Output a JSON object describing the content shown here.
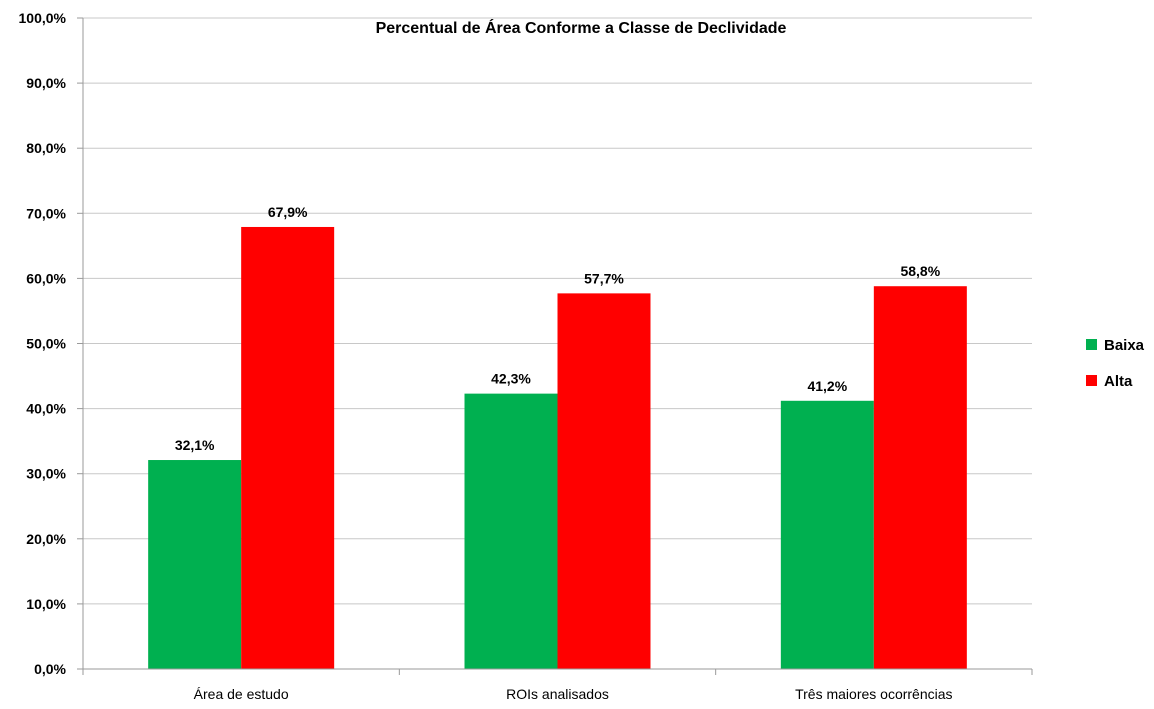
{
  "chart_data": {
    "type": "bar",
    "title": "Percentual de Área Conforme a Classe de Declividade",
    "categories": [
      "Área de estudo",
      "ROIs analisados",
      "Três maiores ocorrências"
    ],
    "series": [
      {
        "name": "Baixa",
        "color": "#00b050",
        "values": [
          32.1,
          42.3,
          41.2
        ],
        "labels": [
          "32,1%",
          "42,3%",
          "41,2%"
        ]
      },
      {
        "name": "Alta",
        "color": "#ff0000",
        "values": [
          67.9,
          57.7,
          58.8
        ],
        "labels": [
          "67,9%",
          "57,7%",
          "58,8%"
        ]
      }
    ],
    "y_ticks": [
      "0,0%",
      "10,0%",
      "20,0%",
      "30,0%",
      "40,0%",
      "50,0%",
      "60,0%",
      "70,0%",
      "80,0%",
      "90,0%",
      "100,0%"
    ],
    "ylim": [
      0,
      100
    ],
    "grid": true,
    "legend_position": "right"
  }
}
